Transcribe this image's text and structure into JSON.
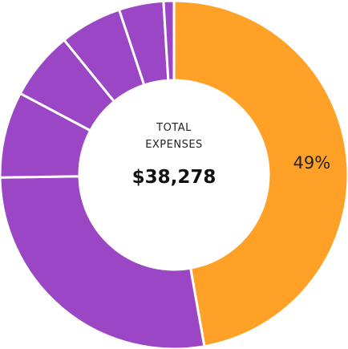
{
  "chart_data": {
    "type": "pie",
    "variant": "donut",
    "center_label_lines": [
      "TOTAL",
      "EXPENSES"
    ],
    "center_total": "$38,278",
    "slices": [
      {
        "value": 49,
        "color": "#FFA126",
        "label": "49%"
      },
      {
        "value": 28.6,
        "color": "#9B46C4",
        "label": ""
      },
      {
        "value": 8.3,
        "color": "#9B46C4",
        "label": ""
      },
      {
        "value": 6.6,
        "color": "#9B46C4",
        "label": ""
      },
      {
        "value": 6.0,
        "color": "#9B46C4",
        "label": ""
      },
      {
        "value": 4.3,
        "color": "#9B46C4",
        "label": ""
      },
      {
        "value": 1.0,
        "color": "#9B46C4",
        "label": ""
      }
    ],
    "separator_color": "#ffffff"
  }
}
